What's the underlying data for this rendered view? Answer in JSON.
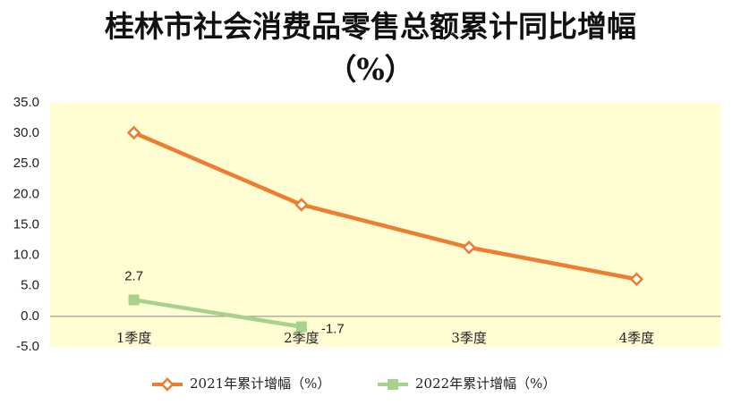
{
  "chart_data": {
    "type": "line",
    "title": "桂林市社会消费品零售总额累计同比增幅（%）",
    "categories": [
      "1季度",
      "2季度",
      "3季度",
      "4季度"
    ],
    "series": [
      {
        "name": "2021年累计增幅（%）",
        "color": "#ed7d31",
        "marker": "diamond",
        "values": [
          30.1,
          18.3,
          11.3,
          6.1
        ]
      },
      {
        "name": "2022年累计增幅（%）",
        "color": "#a9d18e",
        "marker": "square",
        "values": [
          2.7,
          -1.7,
          null,
          null
        ],
        "data_labels": true
      }
    ],
    "ylim": [
      -5,
      35
    ],
    "yticks": [
      {
        "value": -5,
        "label": "-5.0"
      },
      {
        "value": 0,
        "label": "0.0"
      },
      {
        "value": 5,
        "label": "5.0"
      },
      {
        "value": 10,
        "label": "10.0"
      },
      {
        "value": 15,
        "label": "15.0"
      },
      {
        "value": 20,
        "label": "20.0"
      },
      {
        "value": 25,
        "label": "25.0"
      },
      {
        "value": 30,
        "label": "30.0"
      },
      {
        "value": 35,
        "label": "35.0"
      }
    ],
    "legend": "bottom",
    "plot_background": "#fffdd2"
  }
}
